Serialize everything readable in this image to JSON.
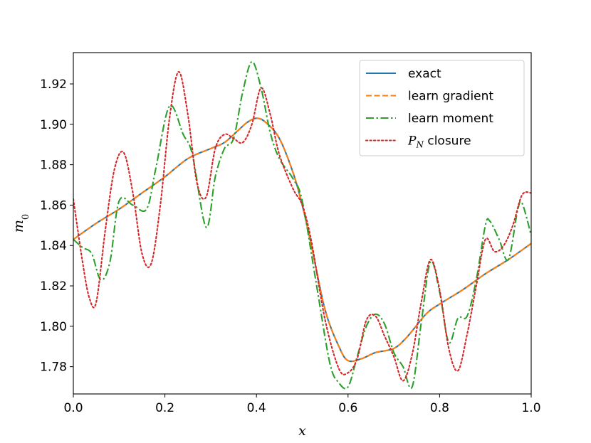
{
  "chart_data": {
    "type": "line",
    "title": "",
    "xlabel": "x",
    "ylabel_main": "m",
    "ylabel_sub": "0",
    "xlim": [
      0.0,
      1.0
    ],
    "ylim": [
      1.7665,
      1.9355
    ],
    "xticks": [
      0.0,
      0.2,
      0.4,
      0.6,
      0.8,
      1.0
    ],
    "xtick_labels": [
      "0.0",
      "0.2",
      "0.4",
      "0.6",
      "0.8",
      "1.0"
    ],
    "yticks": [
      1.78,
      1.8,
      1.82,
      1.84,
      1.86,
      1.88,
      1.9,
      1.92
    ],
    "ytick_labels": [
      "1.78",
      "1.80",
      "1.82",
      "1.84",
      "1.86",
      "1.88",
      "1.90",
      "1.92"
    ],
    "grid": false,
    "legend_position": "top-right",
    "series": [
      {
        "name": "exact",
        "color": "#1f77b4",
        "style": "solid",
        "x": [
          0.0,
          0.05,
          0.1,
          0.15,
          0.2,
          0.25,
          0.3,
          0.33,
          0.36,
          0.38,
          0.4,
          0.42,
          0.45,
          0.48,
          0.5,
          0.52,
          0.55,
          0.58,
          0.6,
          0.63,
          0.66,
          0.7,
          0.73,
          0.77,
          0.8,
          0.85,
          0.9,
          0.95,
          1.0
        ],
        "y": [
          1.843,
          1.851,
          1.858,
          1.866,
          1.874,
          1.883,
          1.888,
          1.891,
          1.897,
          1.901,
          1.903,
          1.901,
          1.893,
          1.876,
          1.86,
          1.84,
          1.808,
          1.79,
          1.783,
          1.784,
          1.787,
          1.789,
          1.795,
          1.806,
          1.811,
          1.818,
          1.826,
          1.833,
          1.841
        ]
      },
      {
        "name": "learn gradient",
        "color": "#ff7f0e",
        "style": "dashed",
        "x": [
          0.0,
          0.05,
          0.1,
          0.15,
          0.2,
          0.25,
          0.3,
          0.33,
          0.36,
          0.38,
          0.4,
          0.42,
          0.45,
          0.48,
          0.5,
          0.52,
          0.55,
          0.58,
          0.6,
          0.63,
          0.66,
          0.7,
          0.73,
          0.77,
          0.8,
          0.85,
          0.9,
          0.95,
          1.0
        ],
        "y": [
          1.843,
          1.851,
          1.858,
          1.866,
          1.874,
          1.883,
          1.888,
          1.891,
          1.897,
          1.901,
          1.903,
          1.901,
          1.893,
          1.876,
          1.86,
          1.84,
          1.808,
          1.79,
          1.783,
          1.784,
          1.787,
          1.789,
          1.795,
          1.806,
          1.811,
          1.818,
          1.826,
          1.833,
          1.841
        ]
      },
      {
        "name": "learn moment",
        "color": "#2ca02c",
        "style": "dashdot",
        "x": [
          0.0,
          0.02,
          0.04,
          0.06,
          0.08,
          0.1,
          0.13,
          0.16,
          0.18,
          0.21,
          0.24,
          0.26,
          0.29,
          0.31,
          0.33,
          0.35,
          0.37,
          0.39,
          0.41,
          0.43,
          0.45,
          0.48,
          0.5,
          0.53,
          0.56,
          0.58,
          0.6,
          0.62,
          0.64,
          0.66,
          0.68,
          0.7,
          0.72,
          0.74,
          0.76,
          0.78,
          0.8,
          0.82,
          0.84,
          0.86,
          0.88,
          0.9,
          0.91,
          0.93,
          0.95,
          0.97,
          0.98,
          1.0
        ],
        "y": [
          1.843,
          1.839,
          1.836,
          1.823,
          1.832,
          1.862,
          1.86,
          1.858,
          1.878,
          1.909,
          1.895,
          1.885,
          1.849,
          1.874,
          1.888,
          1.893,
          1.916,
          1.931,
          1.918,
          1.896,
          1.883,
          1.873,
          1.862,
          1.822,
          1.782,
          1.772,
          1.77,
          1.785,
          1.8,
          1.806,
          1.801,
          1.787,
          1.78,
          1.77,
          1.802,
          1.832,
          1.817,
          1.792,
          1.804,
          1.805,
          1.823,
          1.85,
          1.852,
          1.843,
          1.833,
          1.857,
          1.861,
          1.845
        ]
      },
      {
        "name": "P_N closure",
        "label_main": "P",
        "label_sub": "N",
        "label_rest": " closure",
        "color": "#d62728",
        "style": "dotted",
        "x": [
          0.0,
          0.02,
          0.035,
          0.05,
          0.07,
          0.09,
          0.11,
          0.13,
          0.15,
          0.17,
          0.19,
          0.21,
          0.23,
          0.25,
          0.27,
          0.29,
          0.31,
          0.33,
          0.35,
          0.37,
          0.39,
          0.41,
          0.43,
          0.45,
          0.48,
          0.5,
          0.52,
          0.55,
          0.58,
          0.6,
          0.62,
          0.64,
          0.66,
          0.68,
          0.7,
          0.72,
          0.74,
          0.76,
          0.78,
          0.8,
          0.82,
          0.84,
          0.86,
          0.88,
          0.9,
          0.92,
          0.94,
          0.96,
          0.98,
          1.0
        ],
        "y": [
          1.863,
          1.832,
          1.814,
          1.812,
          1.848,
          1.878,
          1.886,
          1.866,
          1.836,
          1.831,
          1.86,
          1.903,
          1.926,
          1.905,
          1.871,
          1.864,
          1.888,
          1.895,
          1.893,
          1.891,
          1.9,
          1.918,
          1.905,
          1.885,
          1.868,
          1.86,
          1.842,
          1.803,
          1.779,
          1.777,
          1.784,
          1.803,
          1.805,
          1.795,
          1.785,
          1.773,
          1.786,
          1.812,
          1.833,
          1.818,
          1.789,
          1.778,
          1.796,
          1.82,
          1.843,
          1.837,
          1.84,
          1.85,
          1.865,
          1.866
        ]
      }
    ]
  }
}
